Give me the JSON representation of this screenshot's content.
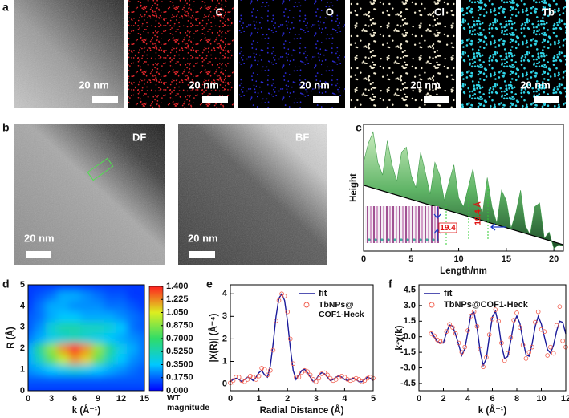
{
  "figure": {
    "a": {
      "panel": "a",
      "images": [
        {
          "scale_bar": "20 nm"
        },
        {
          "element": "C",
          "color": "#e3262b",
          "scale_bar": "20 nm"
        },
        {
          "element": "O",
          "color": "#2a2ad6",
          "scale_bar": "20 nm"
        },
        {
          "element": "Cl",
          "color": "#f1ead0",
          "scale_bar": "20 nm"
        },
        {
          "element": "Tb",
          "color": "#2fd3e6",
          "scale_bar": "20 nm"
        }
      ]
    },
    "b": {
      "panel": "b",
      "images": [
        {
          "mode": "DF",
          "scale_bar": "20 nm"
        },
        {
          "mode": "BF",
          "scale_bar": "20 nm"
        }
      ]
    }
  },
  "chart_data": [
    {
      "type": "area",
      "panel": "c",
      "x_label": "Length/nm",
      "y_label": "Height",
      "xlim": [
        0,
        21
      ],
      "ylim": [
        0,
        100
      ],
      "xticks": [
        0,
        5,
        10,
        15,
        20
      ],
      "x": [
        0,
        0.5,
        1,
        1.5,
        2,
        2.5,
        3,
        3.5,
        4,
        4.5,
        5,
        5.5,
        6,
        6.5,
        7,
        7.5,
        8,
        8.5,
        9,
        9.5,
        10,
        10.5,
        11,
        11.5,
        12,
        12.5,
        13,
        13.5,
        14,
        14.5,
        15,
        15.5,
        16,
        16.5,
        17,
        17.5,
        18,
        18.5,
        19,
        19.5,
        20,
        20.5,
        21
      ],
      "series": [
        {
          "color": "#3f9a4a",
          "values": [
            70,
            85,
            94,
            70,
            60,
            87,
            68,
            55,
            78,
            82,
            60,
            50,
            78,
            62,
            45,
            70,
            60,
            40,
            55,
            68,
            42,
            35,
            50,
            65,
            40,
            30,
            58,
            35,
            22,
            48,
            40,
            18,
            30,
            48,
            20,
            13,
            35,
            38,
            10,
            15,
            2,
            5,
            4
          ]
        },
        {
          "color": "#000000",
          "x": [
            0,
            21
          ],
          "values": [
            52,
            5
          ]
        }
      ],
      "annotations": [
        "19.4",
        "19.4 Å"
      ]
    },
    {
      "type": "heatmap",
      "panel": "d",
      "x_label": "k (Å⁻¹)",
      "y_label": "R (Å)",
      "xlim": [
        0,
        15
      ],
      "ylim": [
        0,
        5
      ],
      "xticks": [
        0,
        3,
        6,
        9,
        12,
        15
      ],
      "yticks": [
        0,
        1,
        2,
        3,
        4,
        5
      ],
      "x": [
        0,
        1.5,
        3,
        4.5,
        6,
        7.5,
        9,
        10.5,
        12,
        13.5,
        15
      ],
      "y": [
        0,
        0.5,
        1,
        1.5,
        2,
        2.5,
        3,
        3.5,
        4,
        4.5,
        5
      ],
      "z": [
        [
          0.1,
          0.1,
          0.1,
          0.1,
          0.1,
          0.1,
          0.1,
          0.1,
          0.1,
          0.1,
          0.1
        ],
        [
          0.15,
          0.15,
          0.15,
          0.15,
          0.15,
          0.15,
          0.15,
          0.15,
          0.15,
          0.15,
          0.15
        ],
        [
          0.25,
          0.3,
          0.35,
          0.4,
          0.45,
          0.4,
          0.35,
          0.3,
          0.25,
          0.2,
          0.15
        ],
        [
          0.3,
          0.5,
          0.8,
          1.0,
          1.2,
          1.1,
          0.8,
          0.5,
          0.35,
          0.25,
          0.2
        ],
        [
          0.3,
          0.6,
          0.9,
          1.2,
          1.4,
          1.2,
          0.9,
          0.6,
          0.4,
          0.3,
          0.2
        ],
        [
          0.2,
          0.3,
          0.4,
          0.45,
          0.5,
          0.45,
          0.4,
          0.35,
          0.3,
          0.25,
          0.2
        ],
        [
          0.15,
          0.25,
          0.45,
          0.55,
          0.55,
          0.5,
          0.5,
          0.45,
          0.35,
          0.2,
          0.15
        ],
        [
          0.15,
          0.2,
          0.3,
          0.35,
          0.35,
          0.3,
          0.3,
          0.3,
          0.25,
          0.2,
          0.15
        ],
        [
          0.1,
          0.2,
          0.3,
          0.3,
          0.25,
          0.25,
          0.25,
          0.2,
          0.2,
          0.15,
          0.1
        ],
        [
          0.1,
          0.15,
          0.2,
          0.3,
          0.3,
          0.25,
          0.2,
          0.15,
          0.15,
          0.1,
          0.1
        ],
        [
          0.1,
          0.1,
          0.1,
          0.1,
          0.1,
          0.1,
          0.1,
          0.1,
          0.1,
          0.1,
          0.1
        ]
      ],
      "zlim": [
        0,
        1.4
      ],
      "zticks": [
        {
          "value": 0,
          "label": "0.000"
        },
        {
          "value": 0.175,
          "label": "0.1750"
        },
        {
          "value": 0.35,
          "label": "0.3500"
        },
        {
          "value": 0.525,
          "label": "0.5250"
        },
        {
          "value": 0.7,
          "label": "0.7000"
        },
        {
          "value": 0.875,
          "label": "0.8750"
        },
        {
          "value": 1.05,
          "label": "1.050"
        },
        {
          "value": 1.225,
          "label": "1.225"
        },
        {
          "value": 1.4,
          "label": "1.400"
        }
      ],
      "colormap": [
        "#0000ff",
        "#00c8ff",
        "#30dc68",
        "#dcee20",
        "#ff2020"
      ],
      "colorbar_label": "WT magnitude"
    },
    {
      "type": "line",
      "panel": "e",
      "x_label": "Radial Distance (Å)",
      "y_label": "|X(R)| (Å⁻⁴)",
      "xlim": [
        0,
        5
      ],
      "ylim": [
        -0.3,
        4.4
      ],
      "xticks": [
        0,
        1,
        2,
        3,
        4,
        5
      ],
      "yticks": [
        0,
        1,
        2,
        3,
        4
      ],
      "x": [
        0,
        0.1,
        0.2,
        0.3,
        0.4,
        0.5,
        0.6,
        0.7,
        0.8,
        0.9,
        1,
        1.1,
        1.2,
        1.3,
        1.4,
        1.5,
        1.6,
        1.7,
        1.8,
        1.9,
        2,
        2.1,
        2.2,
        2.3,
        2.4,
        2.5,
        2.6,
        2.7,
        2.8,
        2.9,
        3,
        3.1,
        3.2,
        3.3,
        3.4,
        3.5,
        3.6,
        3.7,
        3.8,
        3.9,
        4,
        4.1,
        4.2,
        4.3,
        4.4,
        4.5,
        4.6,
        4.7,
        4.8,
        4.9,
        5
      ],
      "series": [
        {
          "name": "fit",
          "mode": "line",
          "color": "#1a1a9a",
          "values": [
            0.1,
            0.2,
            0.25,
            0.2,
            0.1,
            0.2,
            0.3,
            0.25,
            0.15,
            0.3,
            0.5,
            0.6,
            0.4,
            0.3,
            0.8,
            1.8,
            3.0,
            3.8,
            4.0,
            3.7,
            2.8,
            1.6,
            0.6,
            0.2,
            0.4,
            0.6,
            0.65,
            0.5,
            0.3,
            0.1,
            0.2,
            0.4,
            0.5,
            0.45,
            0.3,
            0.15,
            0.2,
            0.3,
            0.35,
            0.3,
            0.2,
            0.15,
            0.2,
            0.25,
            0.2,
            0.1,
            0.1,
            0.2,
            0.3,
            0.25,
            0.15
          ]
        },
        {
          "name": "TbNPs@ COF1-Heck",
          "mode": "markers",
          "color": "#f05a4a",
          "values": [
            0.05,
            0.15,
            0.3,
            0.3,
            0.15,
            0.1,
            0.2,
            0.35,
            0.3,
            0.2,
            0.35,
            0.7,
            0.65,
            0.4,
            0.6,
            1.5,
            2.8,
            3.7,
            4.0,
            3.9,
            3.2,
            2.0,
            0.9,
            0.3,
            0.3,
            0.5,
            0.6,
            0.55,
            0.4,
            0.2,
            0.1,
            0.25,
            0.45,
            0.5,
            0.4,
            0.25,
            0.15,
            0.2,
            0.3,
            0.35,
            0.3,
            0.2,
            0.15,
            0.2,
            0.25,
            0.2,
            0.1,
            0.15,
            0.25,
            0.3,
            0.25
          ]
        }
      ]
    },
    {
      "type": "line",
      "panel": "f",
      "x_label": "k (Å⁻¹)",
      "y_label": "k³χ(k)",
      "xlim": [
        0,
        12
      ],
      "ylim": [
        -5.2,
        5.0
      ],
      "xticks": [
        0,
        2,
        4,
        6,
        8,
        10,
        12
      ],
      "yticks": [
        -4.5,
        {
          "value": -3,
          "label": "-3.0"
        },
        -1.5,
        {
          "value": 0,
          "label": "0.0"
        },
        1.5,
        {
          "value": 3,
          "label": "3.0"
        },
        4.5
      ],
      "x": [
        1,
        1.25,
        1.5,
        1.75,
        2,
        2.25,
        2.5,
        2.75,
        3,
        3.25,
        3.5,
        3.75,
        4,
        4.25,
        4.5,
        4.75,
        5,
        5.25,
        5.5,
        5.75,
        6,
        6.25,
        6.5,
        6.75,
        7,
        7.25,
        7.5,
        7.75,
        8,
        8.25,
        8.5,
        8.75,
        9,
        9.25,
        9.5,
        9.75,
        10,
        10.25,
        10.5,
        10.75,
        11,
        11.25,
        11.5,
        11.75,
        12
      ],
      "series": [
        {
          "name": "fit",
          "mode": "line",
          "color": "#1a1a9a",
          "values": [
            0.46,
            0,
            -0.46,
            -0.59,
            -0.6,
            0.41,
            1.13,
            1.04,
            0.21,
            -0.77,
            -1.8,
            -1.16,
            0.43,
            2.17,
            2.35,
            0.86,
            -1.4,
            -2.76,
            -2.14,
            0,
            1.92,
            2.46,
            1.25,
            -0.86,
            -2.1,
            -1.91,
            -0.38,
            1.29,
            2.0,
            1.29,
            -0.35,
            -1.73,
            -1.88,
            -0.68,
            1.0,
            1.97,
            1.23,
            0,
            -1.23,
            -1.58,
            -0.8,
            0.55,
            1.5,
            1.39,
            0.28
          ]
        },
        {
          "name": "TbNPs@COF1-Heck",
          "mode": "markers",
          "color": "#f05a4a",
          "values": [
            0.3,
            0.1,
            -0.3,
            -0.5,
            -0.4,
            0.5,
            1.2,
            0.9,
            0.3,
            -0.6,
            -1.5,
            -1.0,
            0.6,
            2.0,
            2.4,
            1.0,
            -1.2,
            -2.9,
            -2.0,
            0.2,
            1.7,
            2.6,
            1.5,
            -0.6,
            -2.3,
            -1.6,
            -0.1,
            1.6,
            2.3,
            0.9,
            -0.8,
            -2.1,
            -1.5,
            -1.0,
            1.4,
            2.4,
            0.7,
            0.5,
            -1.8,
            -1.0,
            -1.6,
            1.1,
            2.9,
            -0.4,
            -1.0
          ]
        }
      ]
    }
  ]
}
